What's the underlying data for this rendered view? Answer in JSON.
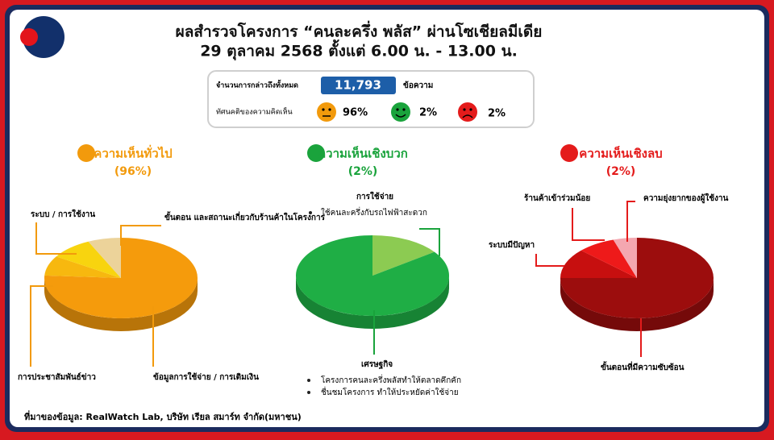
{
  "header": {
    "title": "ผลสำรวจโครงการ “คนละครึ่ง พลัส” ผ่านโซเชียลมีเดีย",
    "subtitle": "29 ตุลาคม 2568 ตั้งแต่ 6.00 น. - 13.00 น."
  },
  "summary": {
    "total_label": "จำนวนการกล่าวถึงทั้งหมด",
    "total": "11,793",
    "total_unit": "ข้อความ",
    "sentiment_label": "ทัศนคติของความคิดเห็น",
    "neutral": "96%",
    "positive": "2%",
    "negative": "2%"
  },
  "pies": [
    {
      "title": "ความเห็นทั่วไป",
      "share": "(96%)",
      "color": "#f29a0c",
      "slices": [
        {
          "label": "ข้อมูลการใช้จ่าย / การเติมเงิน",
          "value": 76,
          "color": "#f59b0c"
        },
        {
          "label": "การประชาสัมพันธ์ข่าว",
          "value": 8,
          "color": "#f7b80f"
        },
        {
          "label": "ระบบ / การใช้งาน",
          "value": 9,
          "color": "#f8d40f"
        },
        {
          "label": "ขั้นตอน และสถานะเกี่ยวกับร้านค้าในโครงการ",
          "value": 7,
          "color": "#ecd39a"
        }
      ]
    },
    {
      "title": "ความเห็นเชิงบวก",
      "share": "(2%)",
      "color": "#1aa33c",
      "slices": [
        {
          "label": "การใช้จ่าย",
          "value": 15,
          "color": "#8ccb52",
          "bullets": [
            "ใช้คนละครึ่งกับรถไฟฟ้าสะดวก"
          ]
        },
        {
          "label": "เศรษฐกิจ",
          "value": 85,
          "color": "#1fae45",
          "bullets": [
            "โครงการคนละครึ่งพลัสทำให้ตลาดคึกคัก",
            "ชื่นชมโครงการ ทำให้ประหยัดค่าใช้จ่าย"
          ]
        }
      ]
    },
    {
      "title": "ความเห็นเชิงลบ",
      "share": "(2%)",
      "color": "#e41b1b",
      "slices": [
        {
          "label": "ขั้นตอนที่มีความซับซ้อน",
          "value": 75,
          "color": "#9c0d0d"
        },
        {
          "label": "ระบบมีปัญหา",
          "value": 12,
          "color": "#c70f0f"
        },
        {
          "label": "ร้านค้าเข้าร่วมน้อย",
          "value": 8,
          "color": "#ee1a1a"
        },
        {
          "label": "ความยุ่งยากของผู้ใช้งาน",
          "value": 5,
          "color": "#f4a7b0"
        }
      ]
    }
  ],
  "footer": "ที่มาของข้อมูล: RealWatch Lab, บริษัท เรียล สมาร์ท จำกัด(มหาชน)"
}
